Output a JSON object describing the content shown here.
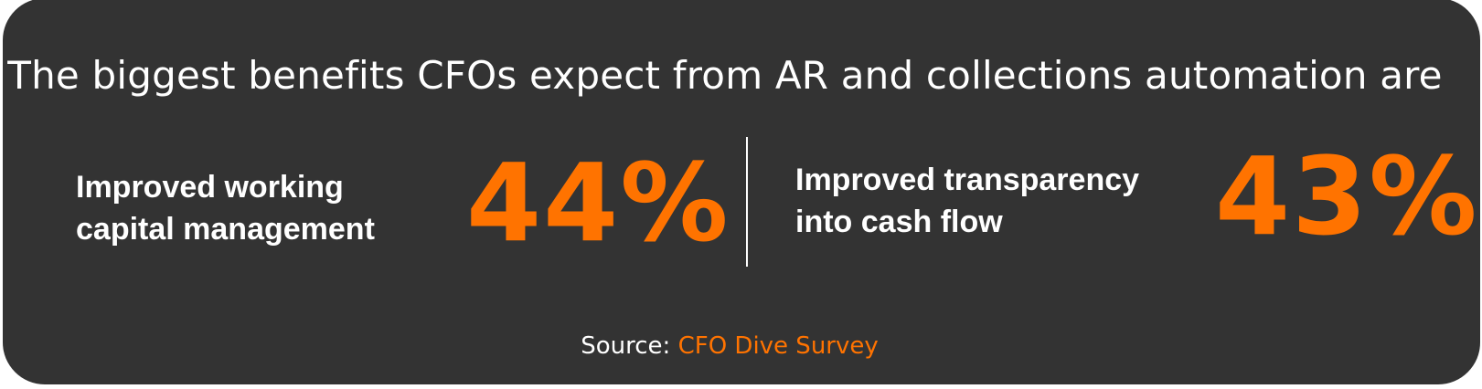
{
  "colors": {
    "background": "#333333",
    "text": "#ffffff",
    "accent": "#ff7300"
  },
  "headline": "The biggest benefits CFOs expect from AR and collections automation are",
  "stats": [
    {
      "label_lines": [
        "Improved working",
        "capital management"
      ],
      "value": "44%"
    },
    {
      "label_lines": [
        "Improved transparency",
        "into cash flow"
      ],
      "value": "43%"
    }
  ],
  "source": {
    "prefix": "Source: ",
    "name": "CFO Dive Survey"
  }
}
